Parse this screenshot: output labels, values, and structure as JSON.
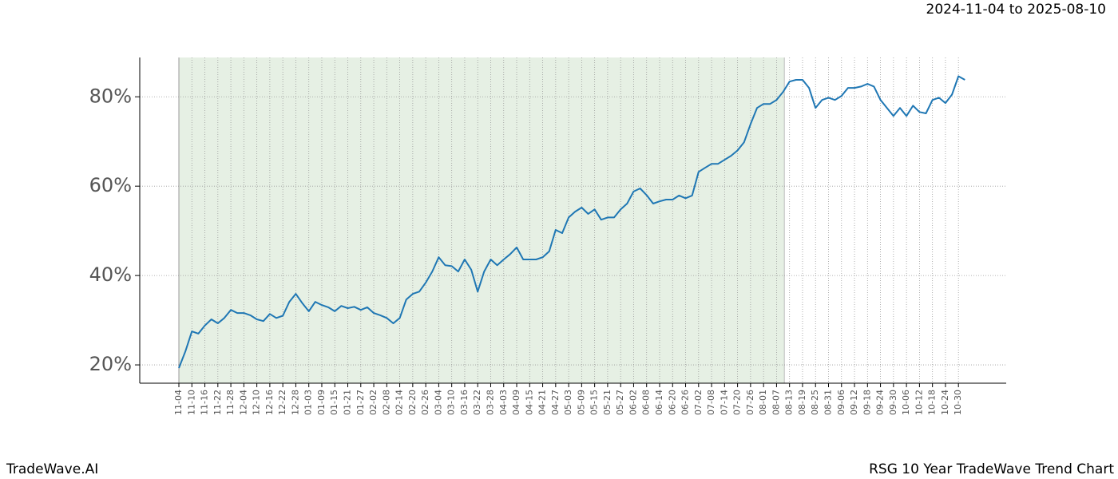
{
  "chart_data": {
    "type": "line",
    "date_range": "2024-11-04 to 2025-08-10",
    "brand": "TradeWave.AI",
    "title": "RSG 10 Year TradeWave Trend Chart",
    "categories": [
      "11-04",
      null,
      "11-10",
      null,
      "11-16",
      null,
      "11-22",
      null,
      "11-28",
      null,
      "12-04",
      null,
      "12-10",
      null,
      "12-16",
      null,
      "12-22",
      null,
      "12-28",
      null,
      "01-03",
      null,
      "01-09",
      null,
      "01-15",
      null,
      "01-21",
      null,
      "01-27",
      null,
      "02-02",
      null,
      "02-08",
      null,
      "02-14",
      null,
      "02-20",
      null,
      "02-26",
      null,
      "03-04",
      null,
      "03-10",
      null,
      "03-16",
      null,
      "03-22",
      null,
      "03-28",
      null,
      "04-03",
      null,
      "04-09",
      null,
      "04-15",
      null,
      "04-21",
      null,
      "04-27",
      null,
      "05-03",
      null,
      "05-09",
      null,
      "05-15",
      null,
      "05-21",
      null,
      "05-27",
      null,
      "06-02",
      null,
      "06-08",
      null,
      "06-14",
      null,
      "06-20",
      null,
      "06-26",
      null,
      "07-02",
      null,
      "07-08",
      null,
      "07-14",
      null,
      "07-20",
      null,
      "07-26",
      null,
      "08-01",
      null,
      "08-07",
      null,
      "08-13",
      null,
      "08-19",
      null,
      "08-25",
      null,
      "08-31",
      null,
      "09-06",
      null,
      "09-12",
      null,
      "09-18",
      null,
      "09-24",
      null,
      "09-30",
      null,
      "10-06",
      null,
      "10-12",
      null,
      "10-18",
      null,
      "10-24",
      null,
      "10-30",
      null
    ],
    "values": [
      19.3,
      23,
      27.5,
      27,
      28.8,
      30.2,
      29.3,
      30.5,
      32.3,
      31.6,
      31.6,
      31.1,
      30.2,
      29.8,
      31.4,
      30.5,
      31,
      34.1,
      35.9,
      33.8,
      32,
      34.1,
      33.4,
      32.9,
      32,
      33.2,
      32.7,
      33.0,
      32.3,
      32.9,
      31.6,
      31.1,
      30.5,
      29.3,
      30.5,
      34.6,
      35.9,
      36.4,
      38.4,
      40.9,
      44.1,
      42.3,
      42.1,
      40.9,
      43.6,
      41.3,
      36.4,
      40.9,
      43.6,
      42.3,
      43.6,
      44.8,
      46.3,
      43.6,
      43.6,
      43.6,
      44.1,
      45.4,
      50.2,
      49.5,
      53,
      54.3,
      55.2,
      53.8,
      54.8,
      52.5,
      53,
      53,
      54.8,
      56.1,
      58.8,
      59.5,
      58,
      56.1,
      56.6,
      57,
      57,
      57.9,
      57.3,
      57.9,
      63.2,
      64.1,
      65,
      65,
      65.9,
      66.8,
      68,
      69.8,
      73.9,
      77.5,
      78.4,
      78.4,
      79.3,
      81.1,
      83.4,
      83.8,
      83.8,
      82,
      77.5,
      79.3,
      79.8,
      79.3,
      80.2,
      82,
      82,
      82.3,
      82.9,
      82.3,
      79.3,
      77.5,
      75.7,
      77.5,
      75.7,
      78,
      76.6,
      76.3,
      79.3,
      79.8,
      78.6,
      80.5,
      84.6,
      83.8
    ],
    "color": "#1f77b4",
    "highlight_range": [
      0,
      93.2
    ],
    "highlight_color": "#e6f0e4",
    "ylim": [
      15.9,
      88.8
    ],
    "yticks": [
      {
        "value": 20,
        "label": "20%"
      },
      {
        "value": 40,
        "label": "40%"
      },
      {
        "value": 60,
        "label": "60%"
      },
      {
        "value": 80,
        "label": "80%"
      }
    ],
    "grid": true
  }
}
